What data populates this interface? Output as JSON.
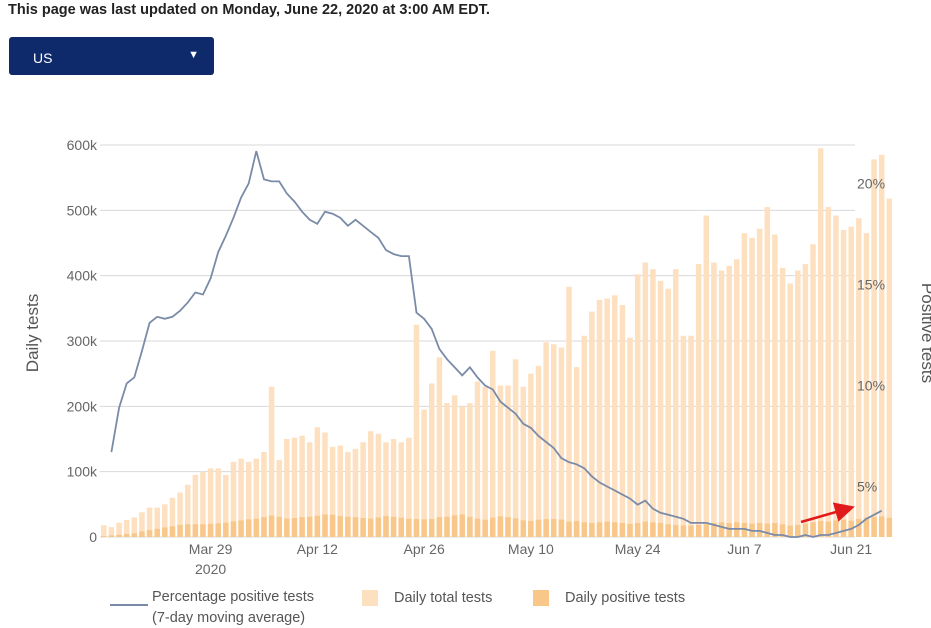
{
  "header": {
    "updated_text": "This page was last updated on Monday, June 22, 2020 at 3:00 AM EDT."
  },
  "region_select": {
    "value": "US",
    "arrow_icon": "caret-down-icon"
  },
  "colors": {
    "total_bar": "#fde0c0",
    "positive_bar": "#f9c78a",
    "line": "#7a8ba8",
    "annotation_arrow": "#e11b1b",
    "grid": "#d8d8d8"
  },
  "chart_data": {
    "type": "bar",
    "xlabel": "",
    "ylabel": "Daily tests",
    "ylabel_right": "Positive tests",
    "ylim": [
      0,
      600000
    ],
    "ylim_right": [
      2.5,
      21.9
    ],
    "yticks": [
      0,
      100000,
      200000,
      300000,
      400000,
      500000,
      600000
    ],
    "ytick_labels": [
      "0",
      "100k",
      "200k",
      "300k",
      "400k",
      "500k",
      "600k"
    ],
    "yticks_right": [
      5,
      10,
      15,
      20
    ],
    "ytick_right_labels": [
      "5%",
      "10%",
      "15%",
      "20%"
    ],
    "x_start": "2020-03-15",
    "x_end": "2020-06-21",
    "xticks": [
      {
        "date": "2020-03-29",
        "label": "Mar 29",
        "sublabel": "2020"
      },
      {
        "date": "2020-04-12",
        "label": "Apr 12",
        "sublabel": ""
      },
      {
        "date": "2020-04-26",
        "label": "Apr 26",
        "sublabel": ""
      },
      {
        "date": "2020-05-10",
        "label": "May 10",
        "sublabel": ""
      },
      {
        "date": "2020-05-24",
        "label": "May 24",
        "sublabel": ""
      },
      {
        "date": "2020-06-07",
        "label": "Jun 7",
        "sublabel": ""
      },
      {
        "date": "2020-06-21",
        "label": "Jun 21",
        "sublabel": ""
      }
    ],
    "grid": true,
    "legend": "bottom-left",
    "series": [
      {
        "name": "Daily total tests",
        "type": "bar",
        "values": [
          18000,
          15000,
          22000,
          26000,
          30000,
          38000,
          45000,
          45000,
          50000,
          60000,
          68000,
          80000,
          95000,
          100000,
          105000,
          105000,
          95000,
          115000,
          120000,
          115000,
          120000,
          130000,
          230000,
          118000,
          150000,
          152000,
          155000,
          145000,
          168000,
          160000,
          138000,
          140000,
          130000,
          135000,
          145000,
          162000,
          158000,
          145000,
          150000,
          145000,
          152000,
          325000,
          195000,
          235000,
          275000,
          205000,
          217000,
          200000,
          205000,
          238000,
          230000,
          285000,
          232000,
          232000,
          272000,
          230000,
          250000,
          262000,
          298000,
          295000,
          290000,
          383000,
          260000,
          308000,
          345000,
          363000,
          365000,
          370000,
          355000,
          305000,
          402000,
          420000,
          410000,
          392000,
          380000,
          410000,
          308000,
          308000,
          418000,
          492000,
          420000,
          408000,
          415000,
          425000,
          465000,
          458000,
          472000,
          505000,
          463000,
          412000,
          388000,
          408000,
          418000,
          448000,
          595000,
          505000,
          492000,
          470000,
          475000,
          488000,
          465000,
          578000,
          585000,
          518000
        ]
      },
      {
        "name": "Daily positive tests",
        "type": "bar",
        "values": [
          1500,
          2500,
          3500,
          4500,
          5500,
          8500,
          10500,
          12500,
          14500,
          16500,
          18500,
          19500,
          19500,
          19500,
          20000,
          21000,
          22000,
          24000,
          25500,
          27000,
          28000,
          30500,
          33000,
          31000,
          28000,
          29000,
          30500,
          31000,
          32500,
          34500,
          34000,
          32000,
          31000,
          30500,
          29000,
          28000,
          30000,
          32000,
          31000,
          29500,
          28000,
          27500,
          27000,
          27500,
          30500,
          31000,
          33000,
          34500,
          31000,
          28000,
          26500,
          29500,
          31500,
          30500,
          28500,
          25500,
          24500,
          26500,
          27500,
          27500,
          26500,
          23500,
          24500,
          22500,
          21500,
          22500,
          23500,
          22500,
          21500,
          20000,
          21500,
          23500,
          22500,
          21500,
          19500,
          18500,
          17500,
          17500,
          18500,
          19500,
          21500,
          22500,
          21500,
          22500,
          21500,
          20500,
          21500,
          20500,
          21500,
          19500,
          17500,
          18500,
          20500,
          22500,
          24500,
          23500,
          25500,
          26500,
          25000,
          27500,
          29500,
          30500,
          31500,
          29500
        ]
      },
      {
        "name": "Percentage positive tests\n(7-day moving average)",
        "type": "line",
        "x_start": "2020-03-16",
        "values": [
          6.7,
          8.9,
          10.1,
          10.4,
          11.7,
          13.1,
          13.4,
          13.3,
          13.4,
          13.7,
          14.1,
          14.6,
          14.5,
          15.3,
          16.6,
          17.4,
          18.3,
          19.3,
          20.0,
          21.6,
          20.2,
          20.1,
          20.1,
          19.5,
          19.1,
          18.6,
          18.2,
          18.0,
          18.6,
          18.5,
          18.3,
          17.9,
          18.2,
          17.9,
          17.6,
          17.3,
          16.7,
          16.5,
          16.4,
          16.4,
          13.6,
          13.3,
          12.8,
          11.8,
          11.3,
          10.9,
          10.5,
          10.9,
          10.4,
          10.0,
          9.8,
          9.2,
          8.9,
          8.6,
          8.1,
          7.9,
          7.5,
          7.2,
          6.9,
          6.4,
          6.2,
          6.1,
          5.9,
          5.5,
          5.2,
          5.0,
          4.8,
          4.6,
          4.4,
          4.1,
          4.3,
          3.9,
          3.7,
          3.6,
          3.5,
          3.4,
          3.2,
          3.2,
          3.2,
          3.1,
          3.0,
          2.9,
          2.9,
          2.9,
          2.8,
          2.8,
          2.7,
          2.6,
          2.6,
          2.5,
          2.5,
          2.6,
          2.5,
          2.6,
          2.6,
          2.7,
          2.8,
          2.9,
          3.1,
          3.4,
          3.6,
          3.8
        ]
      }
    ]
  }
}
